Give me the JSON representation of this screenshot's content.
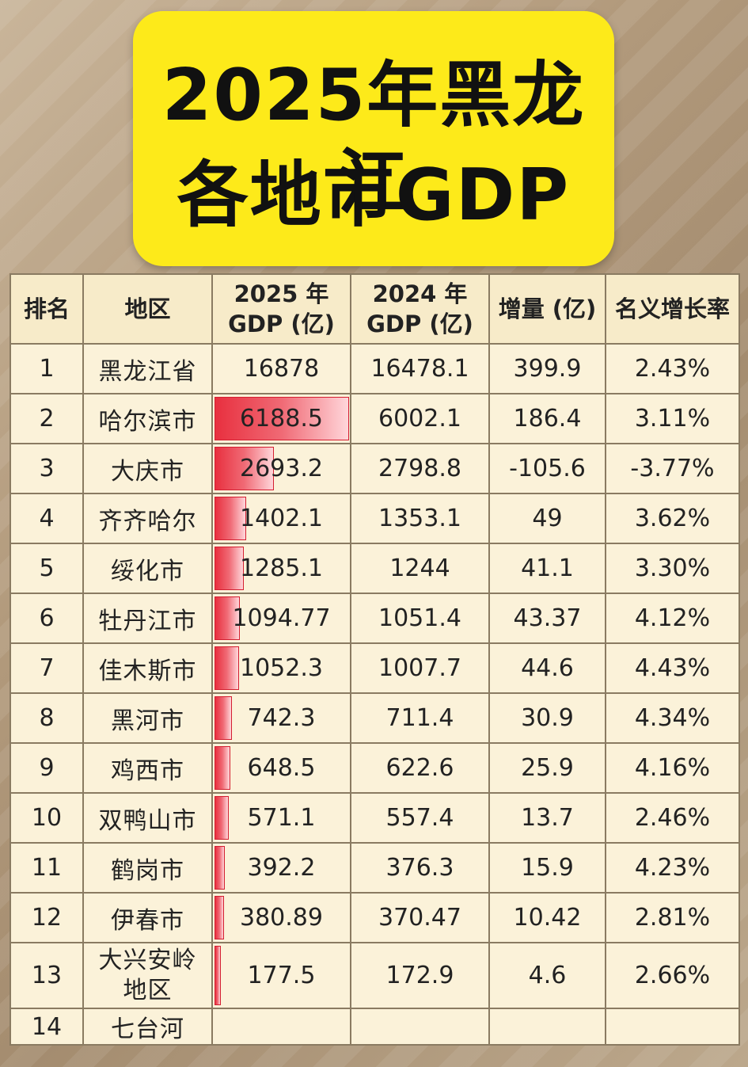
{
  "title": {
    "line1": "2025年黑龙江",
    "line2": "各地市GDP"
  },
  "colors": {
    "title_bg": "#fdea1a",
    "table_bg": "#fbf2d9",
    "bar_red": "#e8303f"
  },
  "chart_data": {
    "type": "table",
    "columns": [
      "排名",
      "地区",
      "2025 年\nGDP (亿)",
      "2024 年\nGDP (亿)",
      "增量 (亿)",
      "名义增长率"
    ],
    "header": {
      "rank": "排名",
      "region": "地区",
      "gdp2025_line1": "2025 年",
      "gdp2025_line2": "GDP (亿)",
      "gdp2024_line1": "2024 年",
      "gdp2024_line2": "GDP (亿)",
      "increase": "增量 (亿)",
      "growth": "名义增长率"
    },
    "rows": [
      {
        "rank": "1",
        "region": "黑龙江省",
        "gdp2025": "16878",
        "gdp2024": "16478.1",
        "increase": "399.9",
        "growth": "2.43%",
        "bar": 0
      },
      {
        "rank": "2",
        "region": "哈尔滨市",
        "gdp2025": "6188.5",
        "gdp2024": "6002.1",
        "increase": "186.4",
        "growth": "3.11%",
        "bar": 6188.5
      },
      {
        "rank": "3",
        "region": "大庆市",
        "gdp2025": "2693.2",
        "gdp2024": "2798.8",
        "increase": "-105.6",
        "growth": "-3.77%",
        "bar": 2693.2
      },
      {
        "rank": "4",
        "region": "齐齐哈尔",
        "gdp2025": "1402.1",
        "gdp2024": "1353.1",
        "increase": "49",
        "growth": "3.62%",
        "bar": 1402.1
      },
      {
        "rank": "5",
        "region": "绥化市",
        "gdp2025": "1285.1",
        "gdp2024": "1244",
        "increase": "41.1",
        "growth": "3.30%",
        "bar": 1285.1
      },
      {
        "rank": "6",
        "region": "牡丹江市",
        "gdp2025": "1094.77",
        "gdp2024": "1051.4",
        "increase": "43.37",
        "growth": "4.12%",
        "bar": 1094.77
      },
      {
        "rank": "7",
        "region": "佳木斯市",
        "gdp2025": "1052.3",
        "gdp2024": "1007.7",
        "increase": "44.6",
        "growth": "4.43%",
        "bar": 1052.3
      },
      {
        "rank": "8",
        "region": "黑河市",
        "gdp2025": "742.3",
        "gdp2024": "711.4",
        "increase": "30.9",
        "growth": "4.34%",
        "bar": 742.3
      },
      {
        "rank": "9",
        "region": "鸡西市",
        "gdp2025": "648.5",
        "gdp2024": "622.6",
        "increase": "25.9",
        "growth": "4.16%",
        "bar": 648.5
      },
      {
        "rank": "10",
        "region": "双鸭山市",
        "gdp2025": "571.1",
        "gdp2024": "557.4",
        "increase": "13.7",
        "growth": "2.46%",
        "bar": 571.1
      },
      {
        "rank": "11",
        "region": "鹤岗市",
        "gdp2025": "392.2",
        "gdp2024": "376.3",
        "increase": "15.9",
        "growth": "4.23%",
        "bar": 392.2
      },
      {
        "rank": "12",
        "region": "伊春市",
        "gdp2025": "380.89",
        "gdp2024": "370.47",
        "increase": "10.42",
        "growth": "2.81%",
        "bar": 380.89
      },
      {
        "rank": "13",
        "region_line1": "大兴安岭",
        "region_line2": "地区",
        "gdp2025": "177.5",
        "gdp2024": "172.9",
        "increase": "4.6",
        "growth": "2.66%",
        "bar": 177.5
      },
      {
        "rank": "14",
        "region": "七台河",
        "gdp2025": "",
        "gdp2024": "",
        "increase": "",
        "growth": "",
        "bar": 0
      }
    ],
    "bar_max": 6188.5
  }
}
